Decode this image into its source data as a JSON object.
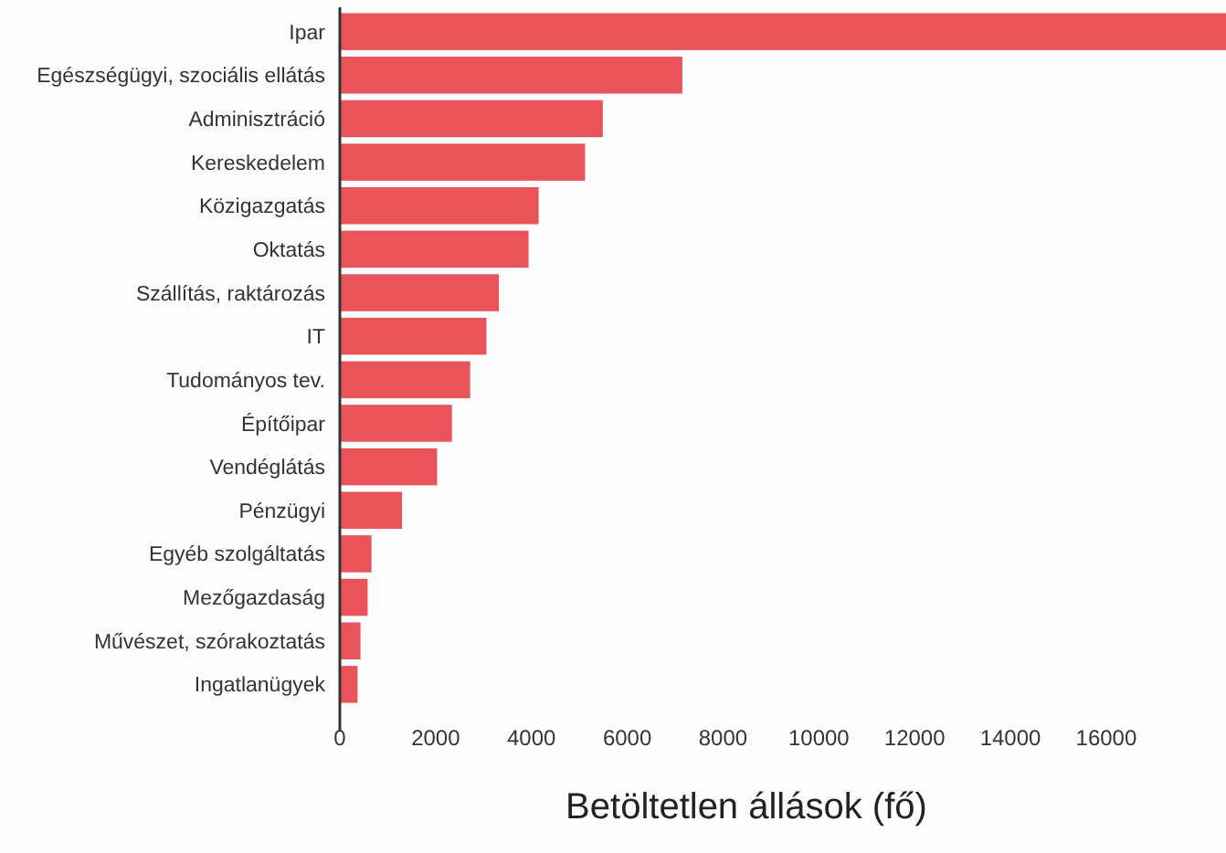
{
  "chart_data": {
    "type": "bar",
    "orientation": "horizontal",
    "xlabel": "Betöltetlen állások (fő)",
    "categories": [
      "Ipar",
      "Egészségügyi, szociális ellátás",
      "Adminisztráció",
      "Kereskedelem",
      "Közigazgatás",
      "Oktatás",
      "Szállítás, raktározás",
      "IT",
      "Tudományos tev.",
      "Építőipar",
      "Vendéglátás",
      "Pénzügyi",
      "Egyéb szolgáltatás",
      "Mezőgazdaság",
      "Művészet, szórakoztatás",
      "Ingatlanügyek"
    ],
    "values": [
      18500,
      7150,
      5490,
      5120,
      4150,
      3940,
      3320,
      3060,
      2720,
      2340,
      2030,
      1300,
      660,
      580,
      430,
      370
    ],
    "color": "#e8545a",
    "xlim": [
      0,
      18500
    ],
    "xticks": [
      0,
      2000,
      4000,
      6000,
      8000,
      10000,
      12000,
      14000,
      16000
    ],
    "grid": false
  }
}
